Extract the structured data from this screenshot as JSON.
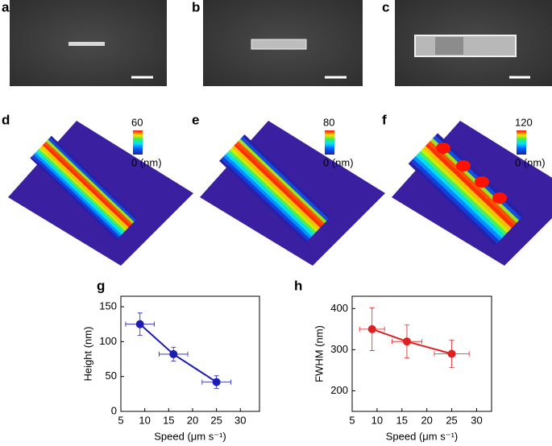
{
  "panels": {
    "labels": [
      "a",
      "b",
      "c",
      "d",
      "e",
      "f"
    ],
    "colorbars": [
      {
        "max": 60,
        "min": {
          "value": 0,
          "label": "0 (nm)"
        }
      },
      {
        "max": 80,
        "min": {
          "value": 0,
          "label": "0 (nm)"
        }
      },
      {
        "max": 120,
        "min": {
          "value": 0,
          "label": "0 (nm)"
        }
      }
    ]
  },
  "chart_data": [
    {
      "type": "line",
      "panel": "g",
      "x_label": "Speed (μm s⁻¹)",
      "y_label": "Height (nm)",
      "x": [
        9,
        16,
        25
      ],
      "xerr": [
        3,
        3,
        3
      ],
      "values": [
        125,
        82,
        42
      ],
      "yerr": [
        16,
        10,
        9
      ],
      "color": "#1c1cb4",
      "xlim": [
        5,
        34
      ],
      "xticks": [
        5,
        10,
        15,
        20,
        25,
        30
      ],
      "ylim": [
        0,
        165
      ],
      "yticks": [
        0,
        50,
        100,
        150
      ]
    },
    {
      "type": "line",
      "panel": "h",
      "x_label": "Speed (μm s⁻¹)",
      "y_label": "FWHM (nm)",
      "x": [
        9,
        16,
        25
      ],
      "xerr": [
        2.5,
        3,
        3.5
      ],
      "values": [
        350,
        320,
        290
      ],
      "yerr": [
        52,
        40,
        33
      ],
      "color": "#e02020",
      "xlim": [
        5,
        33
      ],
      "xticks": [
        5,
        10,
        15,
        20,
        25,
        30
      ],
      "ylim": [
        150,
        430
      ],
      "yticks": [
        200,
        300,
        400
      ]
    }
  ]
}
